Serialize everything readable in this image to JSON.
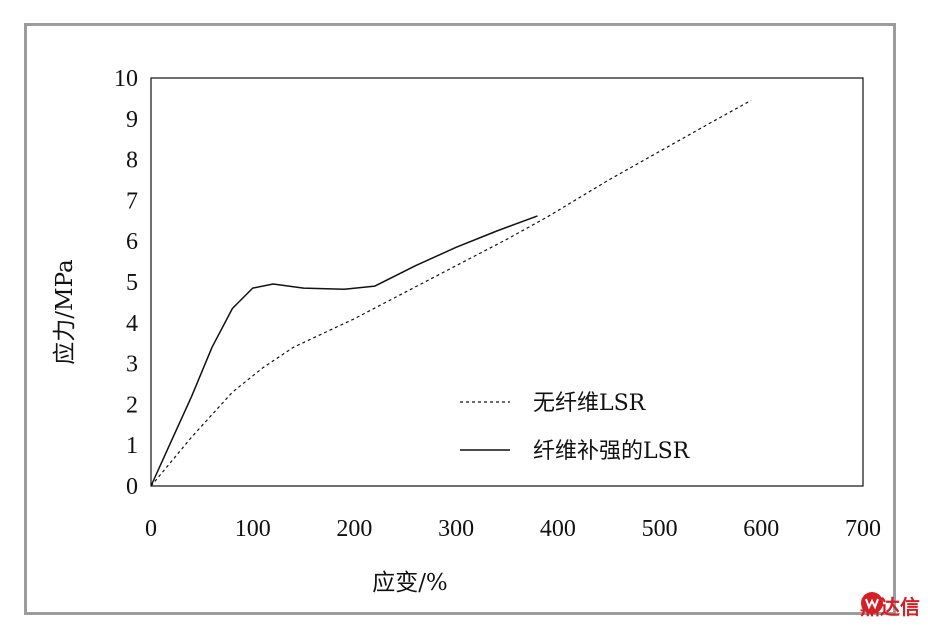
{
  "chart_data": {
    "type": "line",
    "xlabel": "应变/%",
    "ylabel": "应力/MPa",
    "xlim": [
      0,
      700
    ],
    "ylim": [
      0,
      10
    ],
    "xticks": [
      "0",
      "100",
      "200",
      "300",
      "400",
      "500",
      "600",
      "700"
    ],
    "yticks": [
      "0",
      "1",
      "2",
      "3",
      "4",
      "5",
      "6",
      "7",
      "8",
      "9",
      "10"
    ],
    "grid": false,
    "legend_position": "lower-right",
    "series": [
      {
        "name": "无纤维LSR",
        "style": "dashed",
        "x": [
          0,
          40,
          80,
          110,
          140,
          200,
          250,
          300,
          350,
          390,
          450,
          500,
          550,
          590
        ],
        "y": [
          0,
          1.2,
          2.3,
          2.9,
          3.4,
          4.1,
          4.75,
          5.4,
          6.05,
          6.6,
          7.5,
          8.2,
          8.9,
          9.45
        ]
      },
      {
        "name": "纤维补强的LSR",
        "style": "solid",
        "x": [
          0,
          20,
          40,
          60,
          80,
          100,
          120,
          150,
          190,
          220,
          260,
          300,
          340,
          380
        ],
        "y": [
          0,
          1.1,
          2.2,
          3.4,
          4.35,
          4.85,
          4.95,
          4.85,
          4.82,
          4.9,
          5.4,
          5.85,
          6.25,
          6.62
        ]
      }
    ]
  },
  "watermark": {
    "text": "鼎达信",
    "color": "#d41f26"
  }
}
